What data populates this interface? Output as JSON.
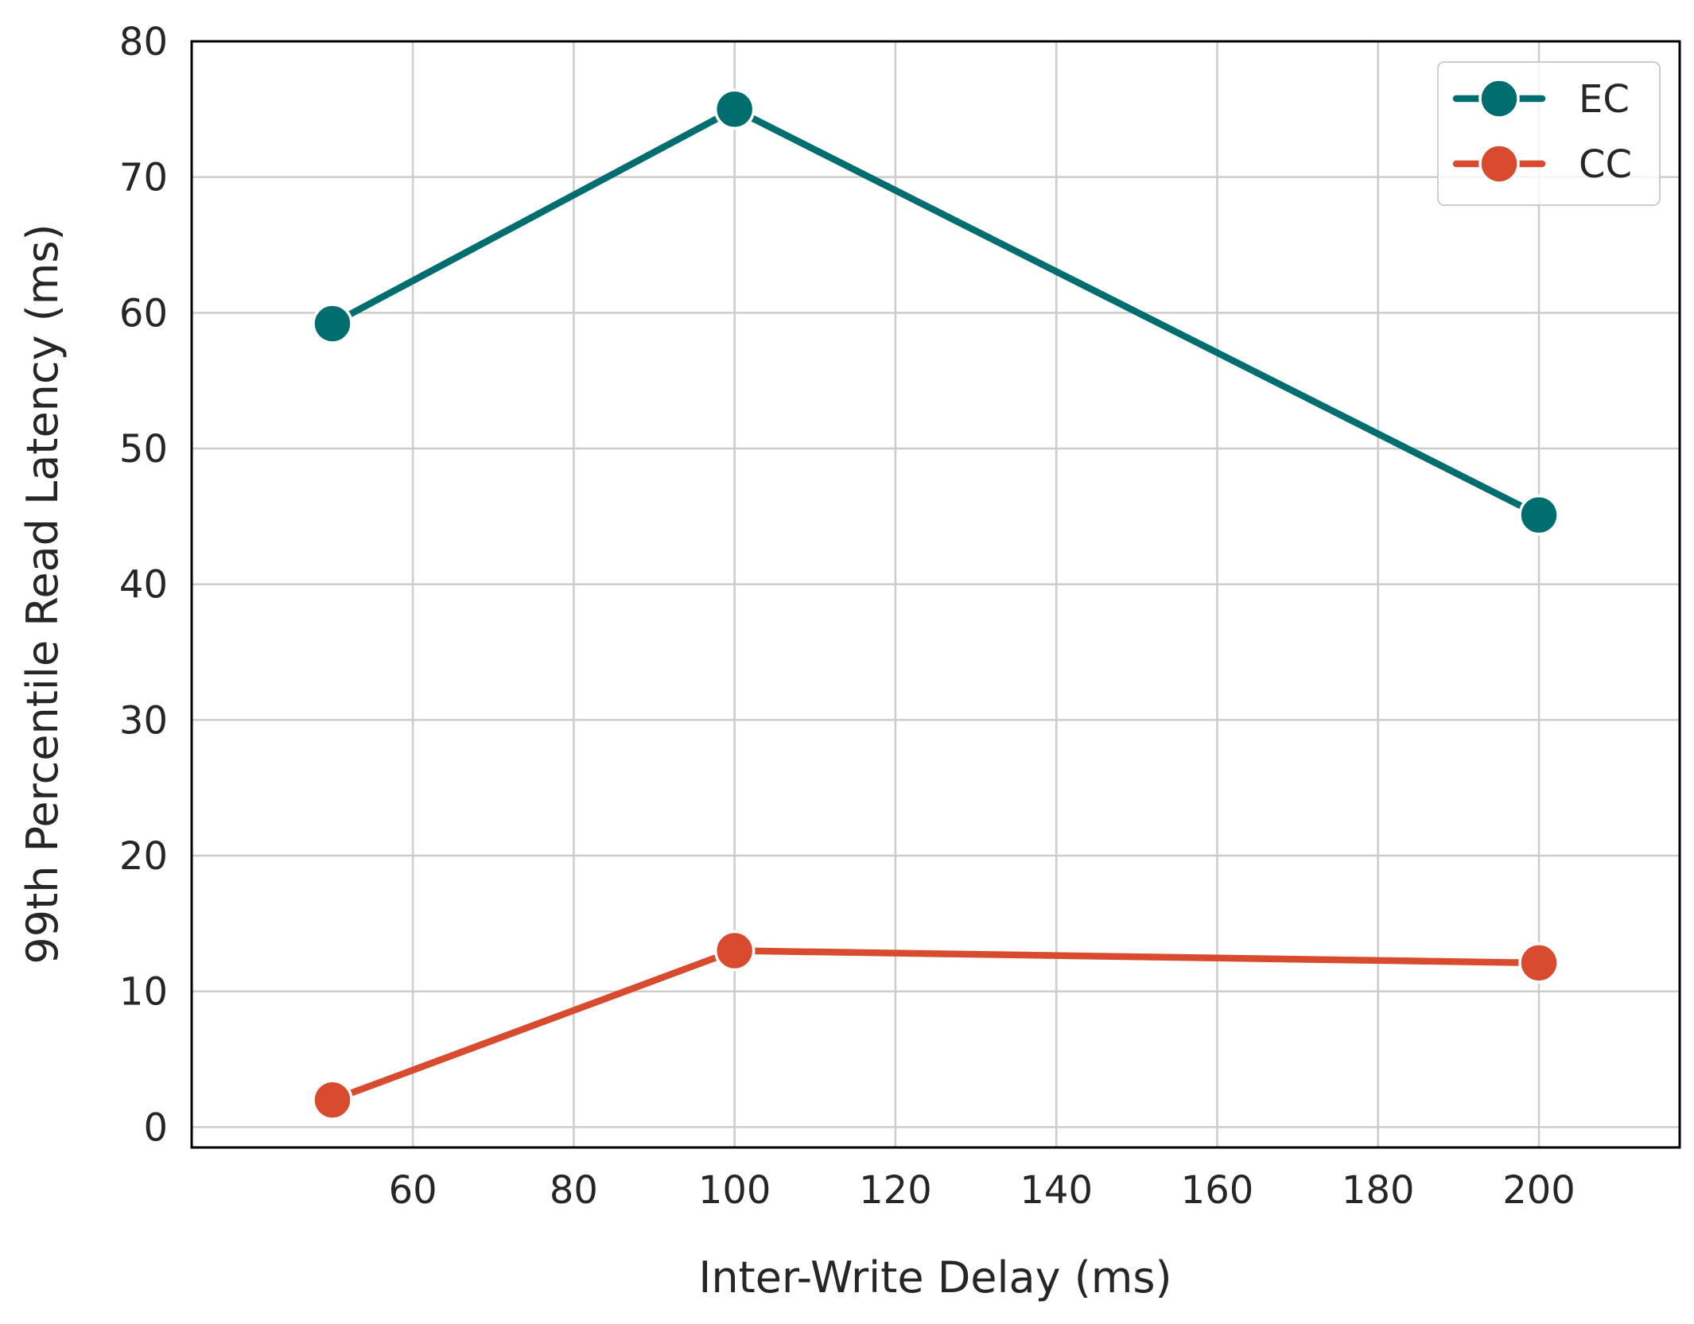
{
  "chart_data": {
    "type": "line",
    "title": "",
    "xlabel": "Inter-Write Delay (ms)",
    "ylabel": "99th Percentile Read Latency (ms)",
    "xlim": [
      32.5,
      217.5
    ],
    "ylim": [
      -1.5,
      80
    ],
    "xticks": [
      60,
      80,
      100,
      120,
      140,
      160,
      180,
      200
    ],
    "yticks": [
      0,
      10,
      20,
      30,
      40,
      50,
      60,
      70,
      80
    ],
    "x": [
      50,
      100,
      200
    ],
    "series": [
      {
        "name": "EC",
        "color": "#006D6F",
        "values": [
          59.2,
          75.0,
          45.1
        ]
      },
      {
        "name": "CC",
        "color": "#D94B2E",
        "values": [
          2.0,
          13.0,
          12.1
        ]
      }
    ],
    "grid": true,
    "legend_position": "top-right",
    "colors": {
      "grid": "#cccccc",
      "axes": "#000000",
      "text": "#262626",
      "marker_edge": "#ffffff"
    }
  }
}
